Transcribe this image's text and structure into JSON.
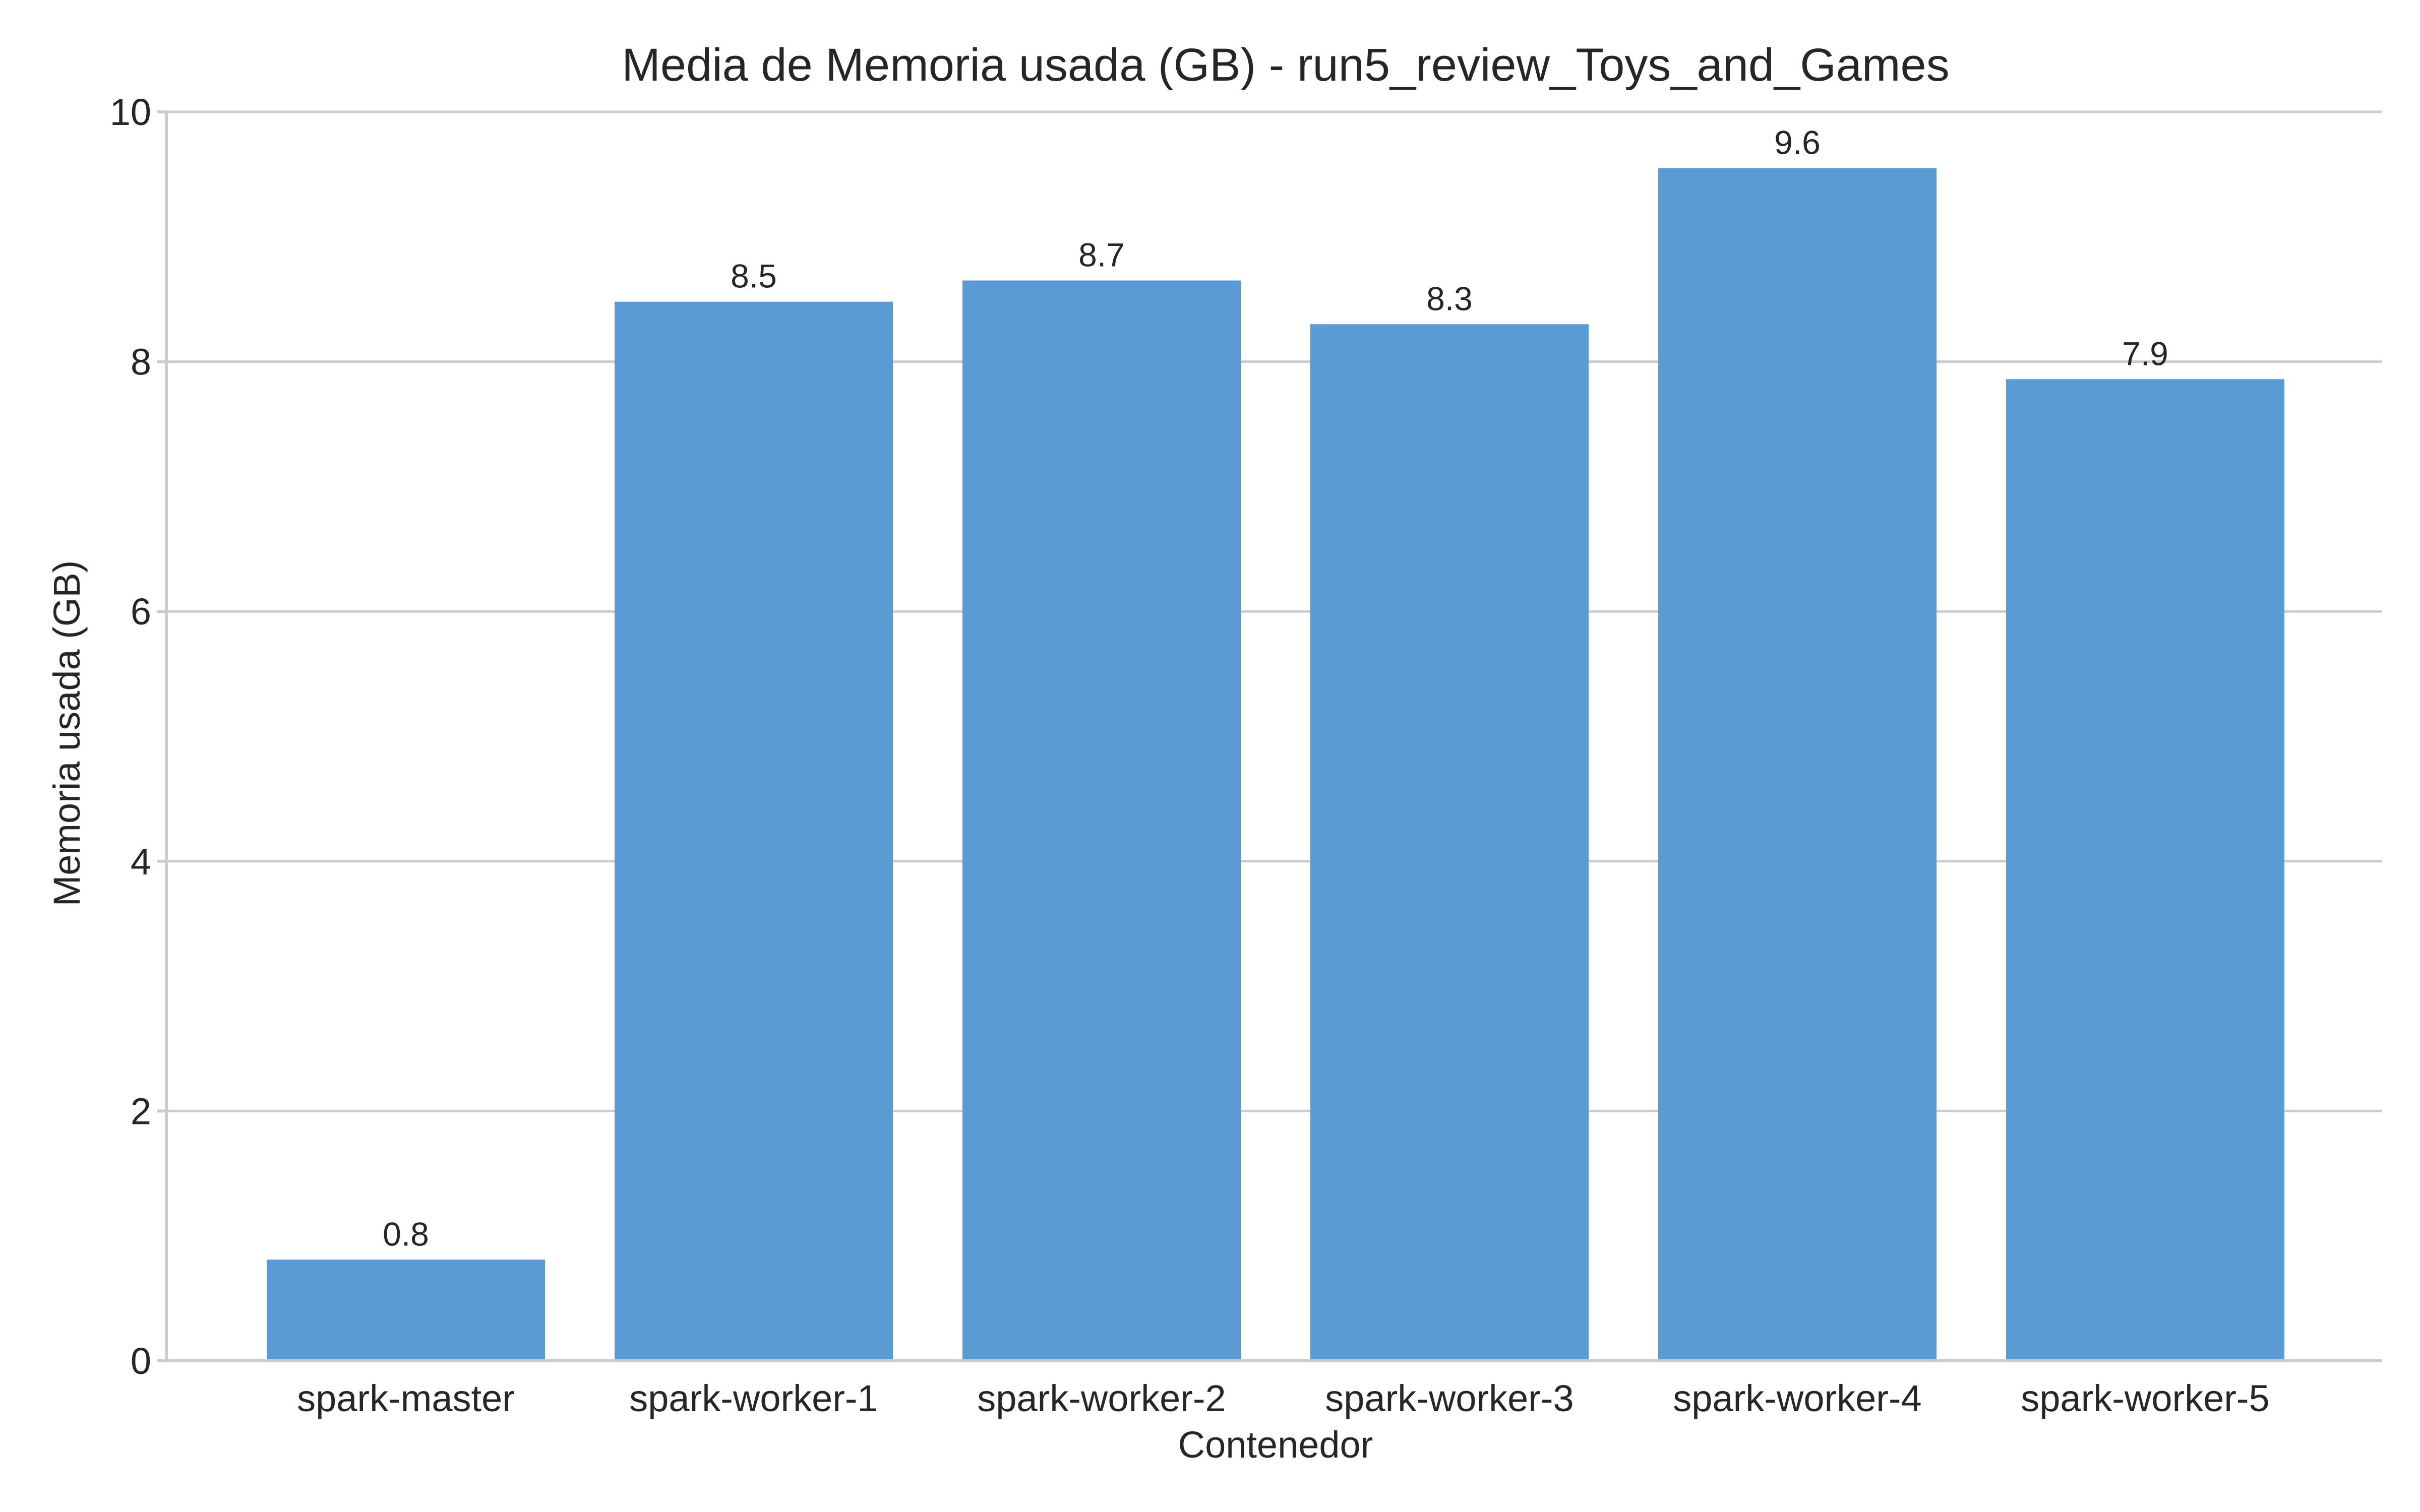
{
  "chart_data": {
    "type": "bar",
    "title": "Media de Memoria usada (GB) - run5_review_Toys_and_Games",
    "xlabel": "Contenedor",
    "ylabel": "Memoria usada (GB)",
    "categories": [
      "spark-master",
      "spark-worker-1",
      "spark-worker-2",
      "spark-worker-3",
      "spark-worker-4",
      "spark-worker-5"
    ],
    "values": [
      0.81,
      8.48,
      8.65,
      8.3,
      9.55,
      7.86
    ],
    "data_labels": [
      "0.8",
      "8.5",
      "8.7",
      "8.3",
      "9.6",
      "7.9"
    ],
    "ylim": [
      0,
      10
    ],
    "yticks": [
      0,
      2,
      4,
      6,
      8,
      10
    ],
    "ytick_labels": [
      "0",
      "2",
      "4",
      "6",
      "8",
      "10"
    ],
    "grid": "horizontal",
    "bar_color": "#5b9bd5",
    "grid_color": "#cccccc",
    "text_color": "#262626"
  }
}
